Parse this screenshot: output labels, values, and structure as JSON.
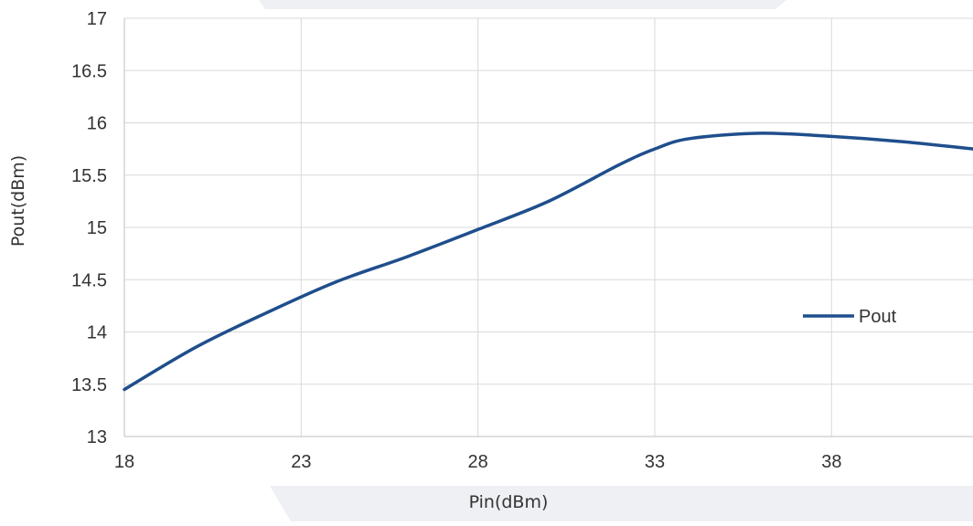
{
  "chart_data": {
    "type": "line",
    "title": "",
    "xlabel": "Pin(dBm)",
    "ylabel": "Pout(dBm)",
    "xlim": [
      18,
      42
    ],
    "ylim": [
      13,
      17
    ],
    "x_ticks": [
      "18",
      "23",
      "28",
      "33",
      "38"
    ],
    "y_ticks": [
      "13",
      "13.5",
      "14",
      "14.5",
      "15",
      "15.5",
      "16",
      "16.5",
      "17"
    ],
    "grid": true,
    "legend_position": "right",
    "series": [
      {
        "name": "Pout",
        "color": "#1f4e8c",
        "x": [
          18,
          20,
          22,
          24,
          26,
          28,
          30,
          32,
          33,
          34,
          36,
          38,
          40,
          42
        ],
        "y": [
          13.45,
          13.85,
          14.18,
          14.48,
          14.72,
          14.98,
          15.25,
          15.6,
          15.75,
          15.85,
          15.9,
          15.87,
          15.82,
          15.75
        ]
      }
    ]
  }
}
